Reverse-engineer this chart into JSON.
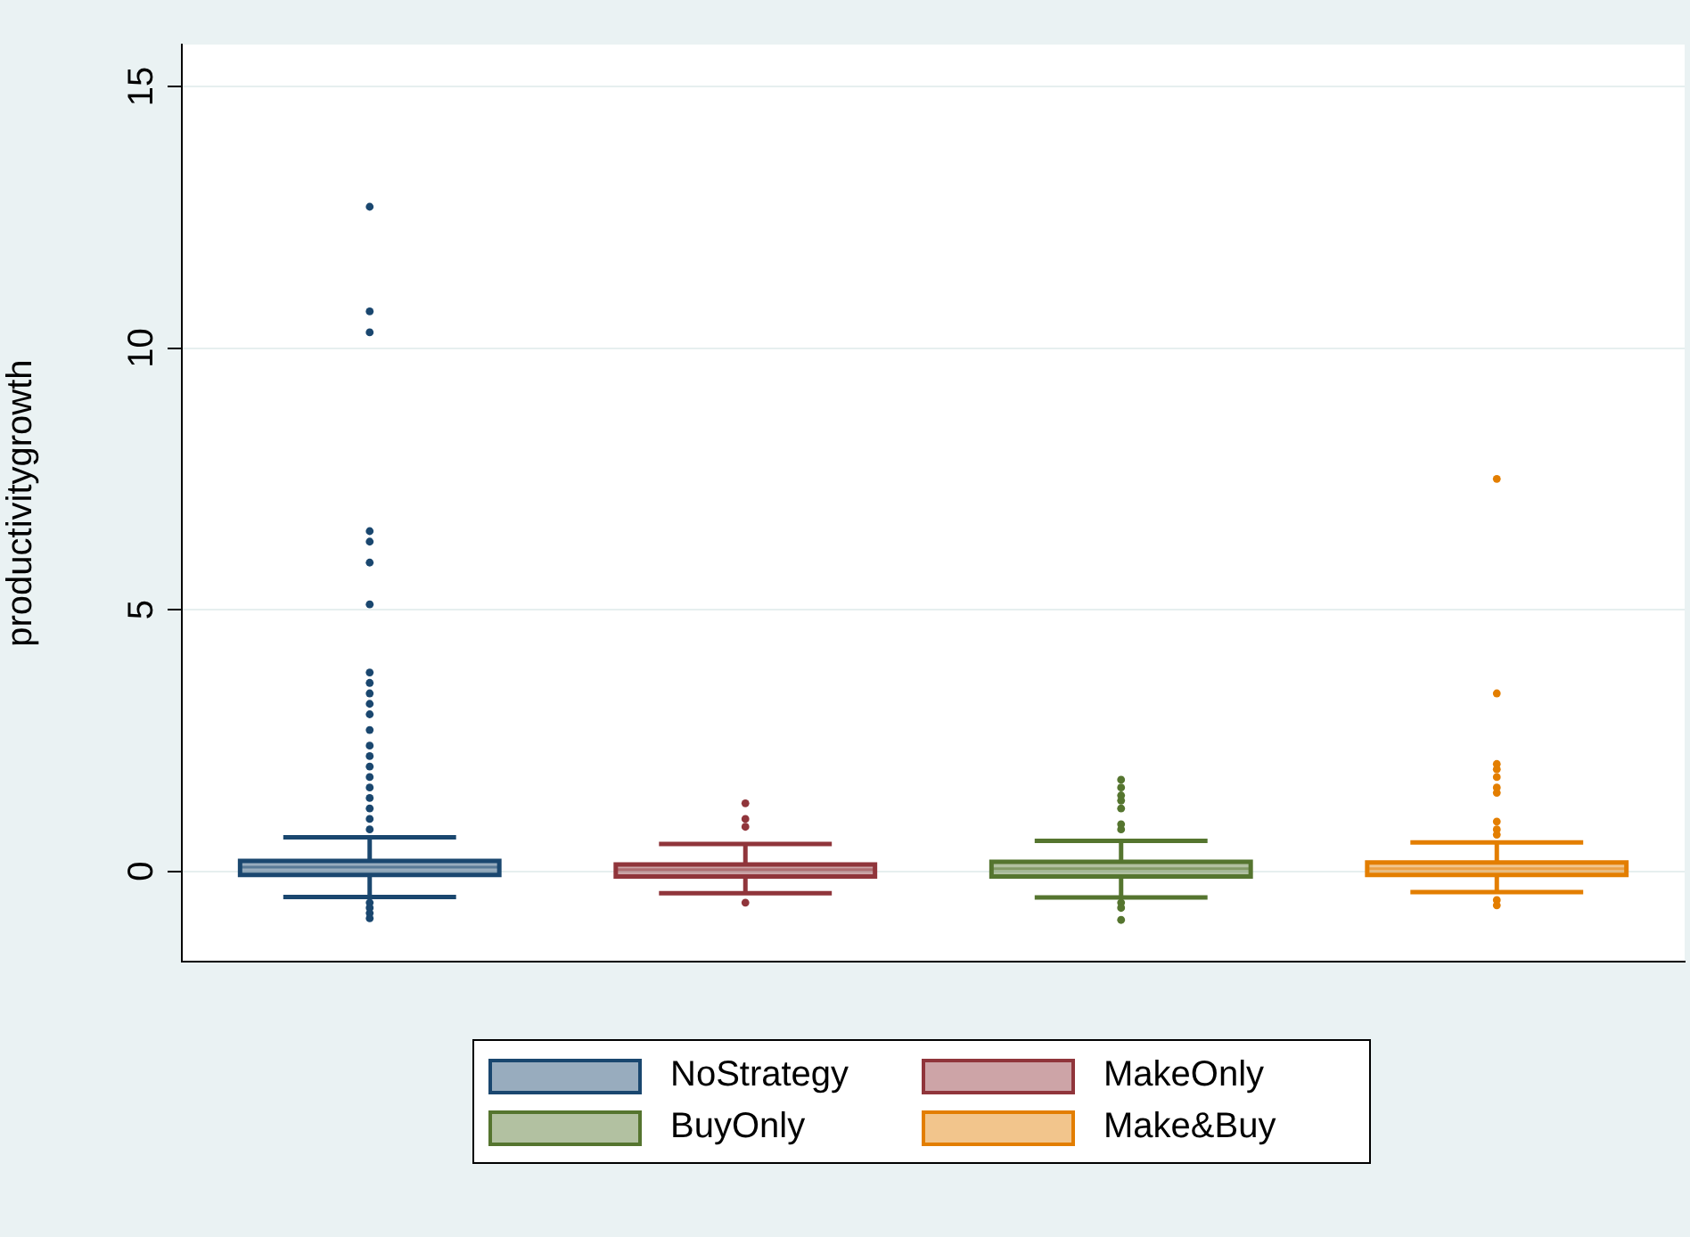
{
  "chart_data": {
    "type": "box",
    "ylabel": "productivitygrowth",
    "categories": [
      null,
      null,
      null,
      null
    ],
    "ylim": [
      -1.73,
      15.8
    ],
    "yticks": [
      0,
      5,
      10,
      15
    ],
    "grid": "y",
    "legend": "bottom",
    "series": [
      {
        "name": "NoStrategy",
        "color": "#1a476f",
        "boxes": [
          {
            "low": -0.49,
            "q1": -0.07,
            "median": 0.08,
            "q3": 0.2,
            "high": 0.65,
            "outliers": [
              12.7,
              10.7,
              10.3,
              6.5,
              6.3,
              5.9,
              5.1,
              3.8,
              3.6,
              3.4,
              3.2,
              3.0,
              2.7,
              2.4,
              2.2,
              2.0,
              1.8,
              1.6,
              1.4,
              1.2,
              1.0,
              0.8,
              -0.6,
              -0.7,
              -0.8,
              -0.9
            ]
          },
          null,
          null,
          null
        ]
      },
      {
        "name": "MakeOnly",
        "color": "#90353b",
        "boxes": [
          null,
          {
            "low": -0.42,
            "q1": -0.1,
            "median": 0.03,
            "q3": 0.13,
            "high": 0.52,
            "outliers": [
              1.3,
              1.0,
              0.85,
              -0.6
            ]
          },
          null,
          null
        ]
      },
      {
        "name": "BuyOnly",
        "color": "#55752f",
        "boxes": [
          null,
          null,
          {
            "low": -0.5,
            "q1": -0.1,
            "median": 0.05,
            "q3": 0.18,
            "high": 0.58,
            "outliers": [
              1.75,
              1.6,
              1.45,
              1.35,
              1.2,
              0.9,
              0.8,
              -0.6,
              -0.7,
              -0.93
            ]
          },
          null
        ]
      },
      {
        "name": "Make&Buy",
        "color": "#e37e00",
        "boxes": [
          null,
          null,
          null,
          {
            "low": -0.4,
            "q1": -0.07,
            "median": 0.05,
            "q3": 0.17,
            "high": 0.55,
            "outliers": [
              7.5,
              3.4,
              2.05,
              1.95,
              1.8,
              1.6,
              1.5,
              0.95,
              0.8,
              0.7,
              -0.55,
              -0.65
            ]
          }
        ]
      }
    ]
  }
}
